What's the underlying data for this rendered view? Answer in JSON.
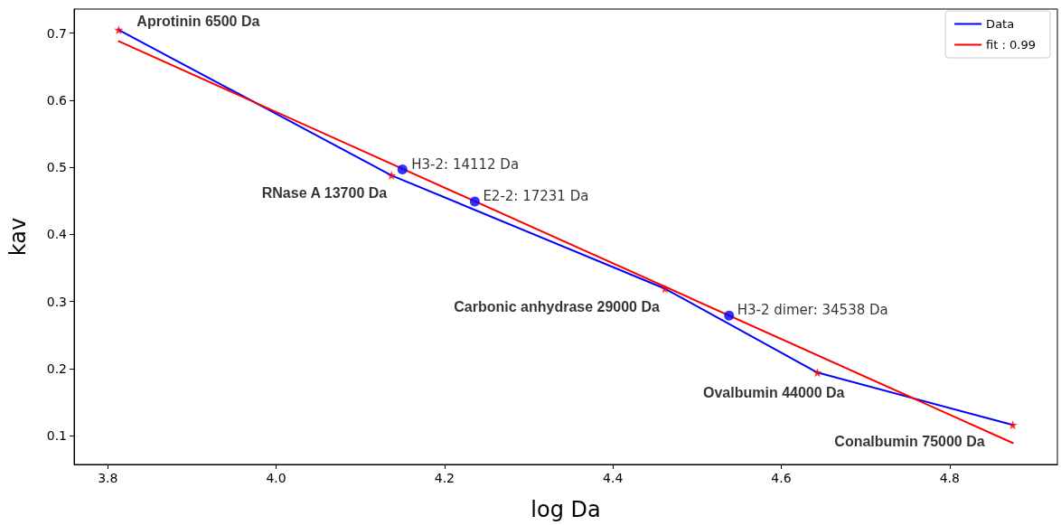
{
  "chart_data": {
    "type": "line",
    "xlabel": "log Da",
    "ylabel": "kav",
    "xlim": [
      3.76,
      4.928
    ],
    "ylim": [
      0.057,
      0.736
    ],
    "xticks": [
      3.8,
      {
        "value": 4,
        "label": "4.0"
      },
      4.2,
      4.4,
      4.6,
      4.8
    ],
    "yticks": [
      0.1,
      0.2,
      0.3,
      0.4,
      0.5,
      0.6,
      0.7
    ],
    "grid": false,
    "legend": "top right",
    "line_style": "solid",
    "series": [
      {
        "name": "Data",
        "color": "#0000ff",
        "marker": "none",
        "x": [
          3.813,
          4.137,
          4.462,
          4.643,
          4.875
        ],
        "values": [
          0.705,
          0.488,
          0.319,
          0.194,
          0.116
        ]
      },
      {
        "name": "fit : 0.99",
        "color": "#ff0000",
        "marker": "none",
        "x": [
          3.813,
          4.875
        ],
        "values": [
          0.688,
          0.089
        ]
      },
      {
        "type": "scatter",
        "color": "#ff0000",
        "marker": "star",
        "x": [
          3.813,
          4.137,
          4.462,
          4.643,
          4.875
        ],
        "values": [
          0.705,
          0.488,
          0.319,
          0.194,
          0.116
        ],
        "value_labels": [
          "Aprotinin 6500 Da",
          "RNase A 13700 Da",
          "Carbonic anhydrase 29000 Da",
          "Ovalbumin 44000 Da",
          "Conalbumin 75000 Da"
        ]
      },
      {
        "type": "scatter",
        "color": "#0000ff",
        "marker": "circle",
        "x": [
          4.15,
          4.236,
          4.538
        ],
        "values": [
          0.497,
          0.449,
          0.279
        ],
        "value_labels": [
          "H3-2: 14112 Da",
          "E2-2: 17231 Da",
          "H3-2 dimer: 34538 Da"
        ]
      }
    ]
  }
}
